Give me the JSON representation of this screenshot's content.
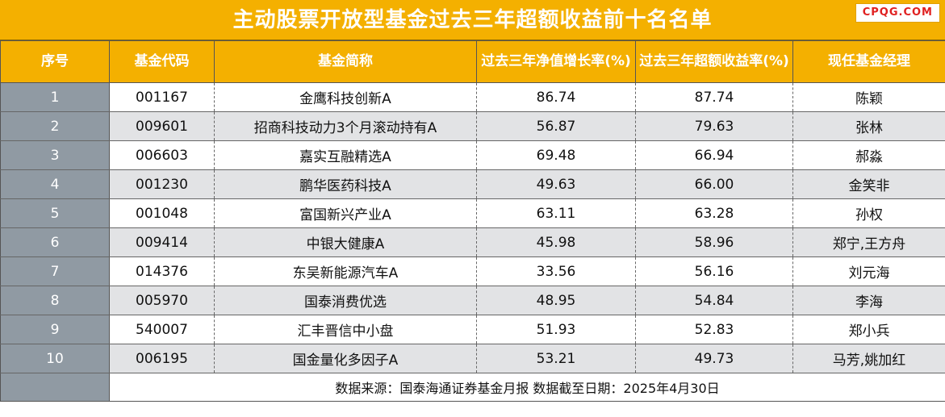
{
  "header": {
    "title": "主动股票开放型基金过去三年超额收益前十名名单",
    "watermark": "CPQG.COM"
  },
  "table": {
    "columns": [
      "序号",
      "基金代码",
      "基金简称",
      "过去三年净值增长率(%)",
      "过去三年超额收益率(%)",
      "现任基金经理"
    ],
    "rows": [
      {
        "rank": "1",
        "code": "001167",
        "name": "金鹰科技创新A",
        "growth": "86.74",
        "excess": "87.74",
        "manager": "陈颖"
      },
      {
        "rank": "2",
        "code": "009601",
        "name": "招商科技动力3个月滚动持有A",
        "growth": "56.87",
        "excess": "79.63",
        "manager": "张林"
      },
      {
        "rank": "3",
        "code": "006603",
        "name": "嘉实互融精选A",
        "growth": "69.48",
        "excess": "66.94",
        "manager": "郝淼"
      },
      {
        "rank": "4",
        "code": "001230",
        "name": "鹏华医药科技A",
        "growth": "49.63",
        "excess": "66.00",
        "manager": "金笑非"
      },
      {
        "rank": "5",
        "code": "001048",
        "name": "富国新兴产业A",
        "growth": "63.11",
        "excess": "63.28",
        "manager": "孙权"
      },
      {
        "rank": "6",
        "code": "009414",
        "name": "中银大健康A",
        "growth": "45.98",
        "excess": "58.96",
        "manager": "郑宁,王方舟"
      },
      {
        "rank": "7",
        "code": "014376",
        "name": "东吴新能源汽车A",
        "growth": "33.56",
        "excess": "56.16",
        "manager": "刘元海"
      },
      {
        "rank": "8",
        "code": "005970",
        "name": "国泰消费优选",
        "growth": "48.95",
        "excess": "54.84",
        "manager": "李海"
      },
      {
        "rank": "9",
        "code": "540007",
        "name": "汇丰晋信中小盘",
        "growth": "51.93",
        "excess": "52.83",
        "manager": "郑小兵"
      },
      {
        "rank": "10",
        "code": "006195",
        "name": "国金量化多因子A",
        "growth": "53.21",
        "excess": "49.73",
        "manager": "马芳,姚加红"
      }
    ],
    "footer": "数据来源：国泰海通证券基金月报  数据截至日期：2025年4月30日"
  },
  "colors": {
    "header_bg": "#f4b000",
    "rank_bg": "#909aa3",
    "stripe_bg": "#e2e3e5"
  }
}
